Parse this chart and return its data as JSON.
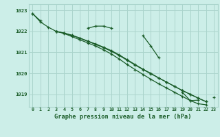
{
  "title": "Graphe pression niveau de la mer (hPa)",
  "bg_color": "#cceee8",
  "grid_color": "#aad4cc",
  "line_color": "#1a5c28",
  "x_min": -0.5,
  "x_max": 23.5,
  "y_min": 1018.4,
  "y_max": 1023.3,
  "yticks": [
    1019,
    1020,
    1021,
    1022,
    1023
  ],
  "xticks": [
    0,
    1,
    2,
    3,
    4,
    5,
    6,
    7,
    8,
    9,
    10,
    11,
    12,
    13,
    14,
    15,
    16,
    17,
    18,
    19,
    20,
    21,
    22,
    23
  ],
  "series1": [
    1022.85,
    1022.5,
    null,
    1022.0,
    null,
    null,
    null,
    1022.15,
    1022.25,
    1022.25,
    1022.15,
    null,
    null,
    null,
    1021.8,
    1021.3,
    1020.75,
    null,
    null,
    1019.1,
    1018.7,
    1018.72,
    null,
    1018.85
  ],
  "series2": [
    1022.85,
    1022.45,
    1022.2,
    1022.0,
    1021.92,
    1021.82,
    1021.68,
    1021.52,
    1021.38,
    1021.22,
    1021.05,
    1020.85,
    1020.62,
    1020.4,
    1020.18,
    1019.98,
    1019.78,
    1019.58,
    1019.38,
    1019.18,
    1019.0,
    1018.82,
    1018.65,
    null
  ],
  "series3": [
    null,
    null,
    null,
    1022.0,
    1021.92,
    1021.8,
    1021.68,
    1021.54,
    1021.4,
    1021.25,
    1021.08,
    1020.88,
    1020.65,
    1020.42,
    1020.2,
    1020.0,
    1019.78,
    1019.58,
    1019.38,
    1019.18,
    1019.0,
    1018.82,
    1018.65,
    null
  ],
  "series4": [
    null,
    null,
    null,
    1022.0,
    1021.9,
    1021.75,
    1021.6,
    1021.45,
    1021.3,
    1021.12,
    1020.92,
    1020.68,
    1020.42,
    1020.18,
    1019.95,
    1019.72,
    1019.5,
    1019.3,
    1019.1,
    1018.9,
    1018.7,
    1018.55,
    1018.5,
    null
  ]
}
